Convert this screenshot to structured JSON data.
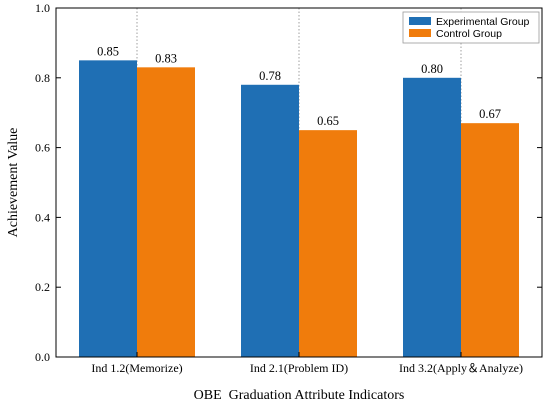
{
  "chart_data": {
    "type": "bar",
    "categories": [
      "Ind 1.2(Memorize)",
      "Ind 2.1(Problem ID)",
      "Ind 3.2(Apply＆Analyze)"
    ],
    "series": [
      {
        "name": "Experimental Group",
        "values": [
          0.85,
          0.78,
          0.8
        ],
        "labels": [
          "0.85",
          "0.78",
          "0.80"
        ],
        "color": "#1f6fb4"
      },
      {
        "name": "Control Group",
        "values": [
          0.83,
          0.65,
          0.67
        ],
        "labels": [
          "0.83",
          "0.65",
          "0.67"
        ],
        "color": "#f07c0c"
      }
    ],
    "xlabel": "OBE  Graduation Attribute Indicators",
    "ylabel": "Achievement Value",
    "ylim": [
      0,
      1.0
    ],
    "yticks": [
      "0.0",
      "0.2",
      "0.4",
      "0.6",
      "0.8",
      "1.0"
    ],
    "grid": "vertical dotted between groups",
    "legend_position": "top-right"
  }
}
